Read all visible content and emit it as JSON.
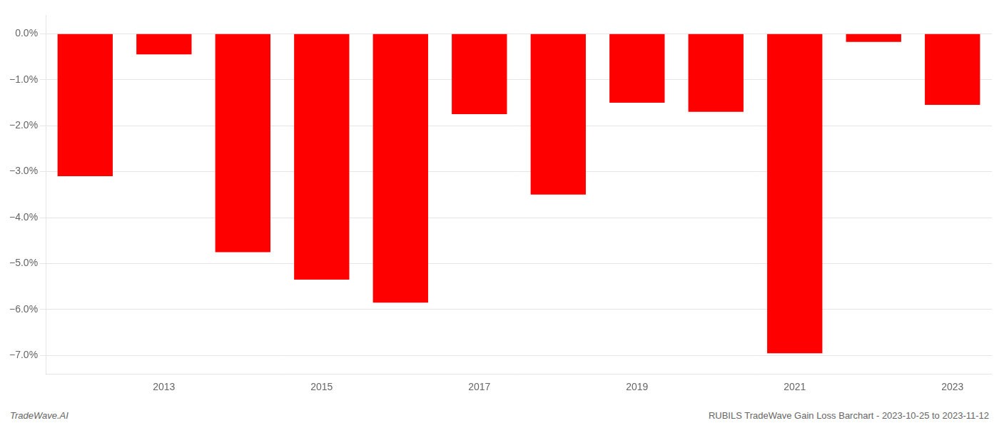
{
  "chart_data": {
    "type": "bar",
    "categories": [
      null,
      "2013",
      null,
      "2015",
      null,
      "2017",
      null,
      "2019",
      null,
      "2021",
      null,
      "2023"
    ],
    "values": [
      -3.1,
      -0.45,
      -4.75,
      -5.35,
      -5.85,
      -1.75,
      -3.5,
      -1.5,
      -1.7,
      -6.95,
      -0.18,
      -1.55
    ],
    "color": "#ff0000",
    "ylim": [
      -7.4,
      0.4
    ],
    "yticks": [
      {
        "value": 0.0,
        "label": "0.0%"
      },
      {
        "value": -1.0,
        "label": "−1.0%"
      },
      {
        "value": -2.0,
        "label": "−2.0%"
      },
      {
        "value": -3.0,
        "label": "−3.0%"
      },
      {
        "value": -4.0,
        "label": "−4.0%"
      },
      {
        "value": -5.0,
        "label": "−5.0%"
      },
      {
        "value": -6.0,
        "label": "−6.0%"
      },
      {
        "value": -7.0,
        "label": "−7.0%"
      }
    ],
    "grid": true,
    "annotations": [
      "TradeWave.AI",
      "RUBILS TradeWave Gain Loss Barchart - 2023-10-25 to 2023-11-12"
    ]
  }
}
